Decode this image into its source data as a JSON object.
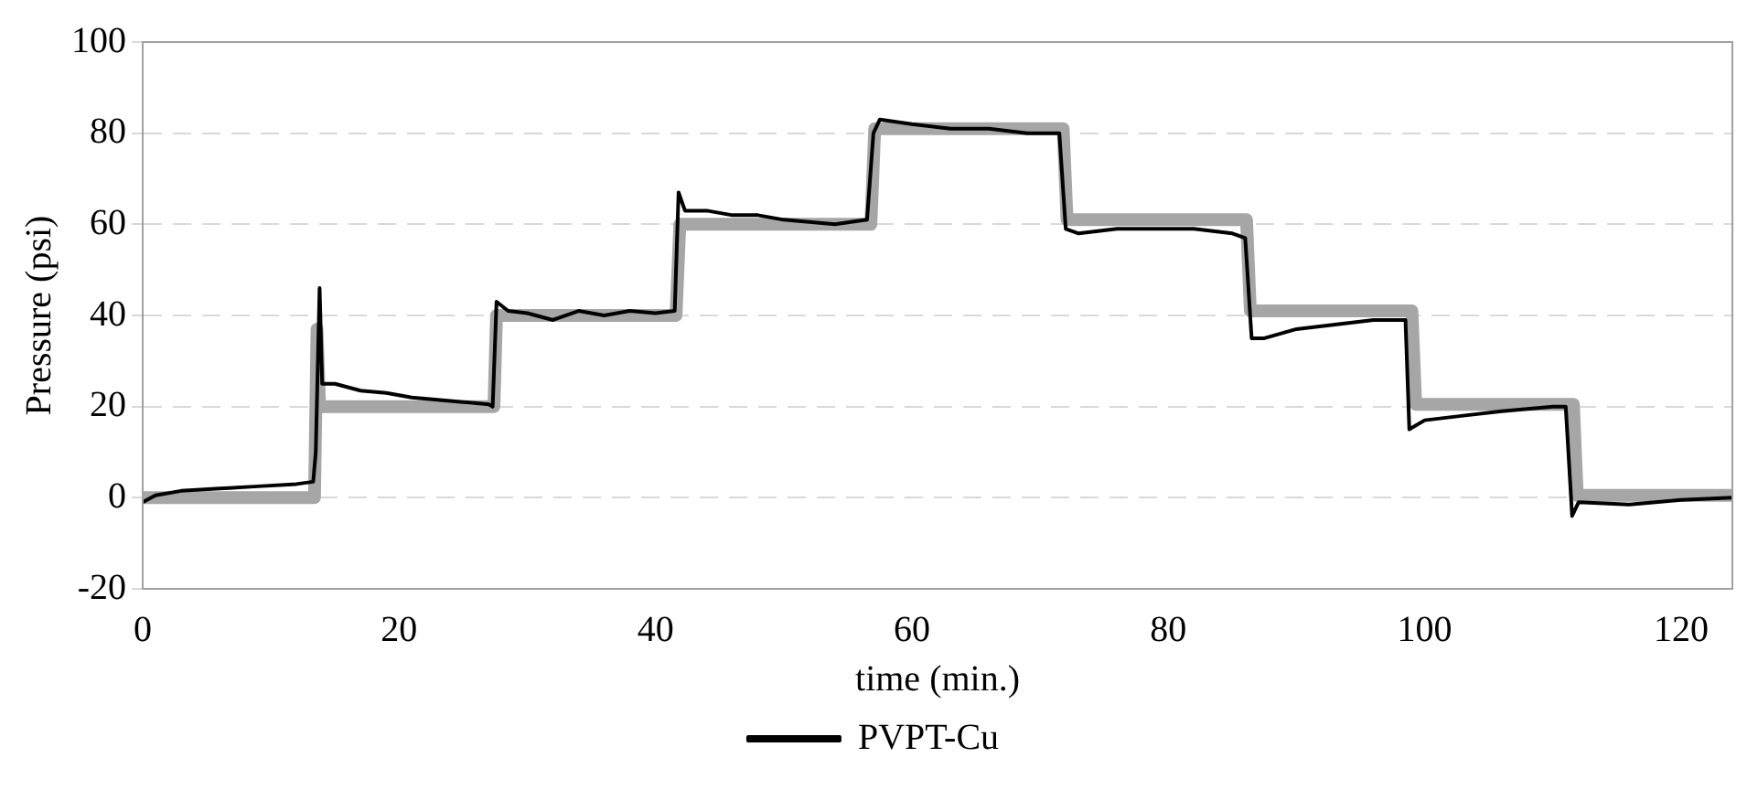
{
  "chart_data": {
    "type": "line",
    "xlabel": "time (min.)",
    "ylabel": "Pressure (psi)",
    "xlim": [
      0,
      124
    ],
    "xticks": [
      0,
      20,
      40,
      60,
      80,
      100,
      120
    ],
    "ylim": [
      -20,
      100
    ],
    "yticks": [
      -20,
      0,
      20,
      40,
      60,
      80,
      100
    ],
    "grid": "y",
    "legend": "bottom",
    "marker": "none",
    "line_style": "solid",
    "series": [
      {
        "color": "#a6a6a6",
        "x": [
          0,
          13.4,
          13.6,
          13.8,
          27.4,
          27.6,
          41.6,
          41.9,
          56.8,
          57.1,
          71.8,
          72.1,
          86.1,
          86.4,
          99,
          99.3,
          111.6,
          111.9,
          124
        ],
        "values": [
          0,
          0,
          37,
          20,
          20,
          40,
          40,
          60,
          60,
          81,
          81,
          61,
          61,
          41,
          41,
          20.5,
          20.5,
          0.5,
          0.5
        ]
      },
      {
        "name": "PVPT-Cu",
        "color": "#000000",
        "x": [
          0,
          1,
          3,
          6,
          9,
          12,
          13.3,
          13.5,
          13.8,
          14,
          15,
          17,
          19,
          21,
          23,
          25,
          27,
          27.3,
          27.6,
          28.5,
          30,
          32,
          34,
          36,
          38,
          40,
          41.5,
          41.8,
          42.3,
          44,
          46,
          48,
          50,
          52,
          54,
          56.5,
          57,
          57.5,
          60,
          63,
          66,
          69,
          71.5,
          72,
          73,
          76,
          79,
          82,
          85,
          86,
          86.5,
          87.5,
          90,
          93,
          96,
          98.5,
          98.8,
          100,
          103,
          106,
          110,
          111,
          111.5,
          112,
          116,
          120,
          124
        ],
        "values": [
          -1,
          0.5,
          1.5,
          2,
          2.5,
          3,
          3.5,
          10,
          46,
          25,
          25,
          23.5,
          23,
          22,
          21.5,
          21,
          20.5,
          20,
          43,
          41,
          40.5,
          39,
          41,
          40,
          41,
          40.5,
          41,
          67,
          63,
          63,
          62,
          62,
          61,
          60.5,
          60,
          61,
          80,
          83,
          82,
          81,
          81,
          80,
          80,
          59,
          58,
          59,
          59,
          59,
          58,
          57,
          35,
          35,
          37,
          38,
          39,
          39,
          15,
          17,
          18,
          19,
          20,
          20,
          -4,
          -1,
          -1.5,
          -0.5,
          0
        ]
      }
    ]
  }
}
